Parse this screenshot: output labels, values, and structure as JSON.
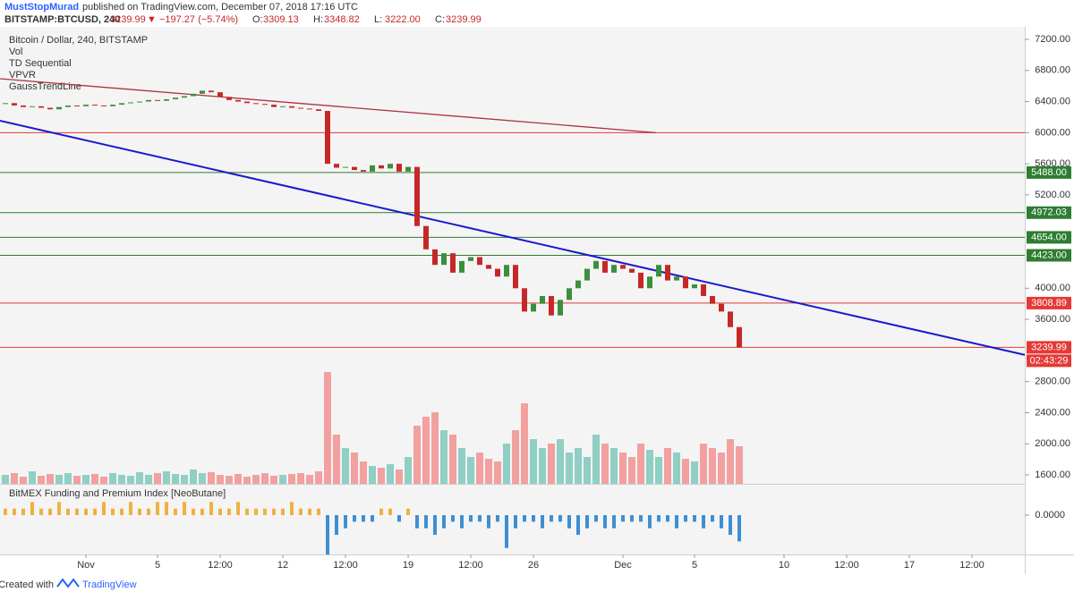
{
  "header": {
    "author": "MustStopMurad",
    "published": "published on TradingView.com, December 07, 2018 17:16 UTC",
    "symbol": "BITSTAMP:BTCUSD, 240",
    "last": "3239.99",
    "change": "▼ −197.27 (−5.74%)",
    "ohlc": [
      {
        "key": "O:",
        "value": "3309.13"
      },
      {
        "key": "H:",
        "value": "3348.82"
      },
      {
        "key": "L:",
        "value": "3222.00"
      },
      {
        "key": "C:",
        "value": "3239.99"
      }
    ]
  },
  "legend": [
    "Bitcoin / Dollar, 240, BITSTAMP",
    "Vol",
    "TD Sequential",
    "VPVR",
    "GaussTrendLine"
  ],
  "footer": {
    "created": "Created with",
    "brand": "TradingView"
  },
  "chart_data": [
    {
      "type": "candle",
      "ylim": [
        1485,
        7361
      ],
      "yticks": [
        1600,
        2000,
        2400,
        2800,
        3600,
        4000,
        5200,
        5600,
        6000,
        6400,
        6800,
        7200
      ],
      "ytick_labels": [
        "1600.00",
        "2000.00",
        "2400.00",
        "2800.00",
        "3600.00",
        "4000.00",
        "5200.00",
        "5600.00",
        "6000.00",
        "6400.00",
        "6800.00",
        "7200.00"
      ],
      "up_color": "#3c8f3c",
      "down_color": "#c62828",
      "xticks": [
        {
          "value": 9,
          "label": "Nov"
        },
        {
          "value": 17,
          "label": "5"
        },
        {
          "value": 24,
          "label": "12:00"
        },
        {
          "value": 31,
          "label": "12"
        },
        {
          "value": 38,
          "label": "12:00"
        },
        {
          "value": 45,
          "label": "19"
        },
        {
          "value": 52,
          "label": "12:00"
        },
        {
          "value": 59,
          "label": "26"
        },
        {
          "value": 69,
          "label": "Dec"
        },
        {
          "value": 77,
          "label": "5"
        },
        {
          "value": 87,
          "label": "10"
        },
        {
          "value": 94,
          "label": "12:00"
        },
        {
          "value": 101,
          "label": "17"
        },
        {
          "value": 108,
          "label": "12:00"
        }
      ],
      "series": [
        {
          "name": "Close",
          "values": [
            6380,
            6350,
            6330,
            6340,
            6320,
            6300,
            6330,
            6350,
            6340,
            6360,
            6350,
            6340,
            6360,
            6380,
            6390,
            6400,
            6420,
            6410,
            6430,
            6450,
            6470,
            6500,
            6540,
            6520,
            6460,
            6420,
            6400,
            6380,
            6370,
            6360,
            6330,
            6340,
            6320,
            6310,
            6300,
            6280,
            5600,
            5550,
            5560,
            5520,
            5500,
            5580,
            5540,
            5600,
            5500,
            5560,
            4800,
            4500,
            4300,
            4450,
            4200,
            4350,
            4400,
            4300,
            4250,
            4150,
            4300,
            4000,
            3700,
            3800,
            3900,
            3650,
            3850,
            4000,
            4100,
            4250,
            4350,
            4200,
            4300,
            4250,
            4200,
            4000,
            4150,
            4300,
            4100,
            4150,
            4000,
            4050,
            3900,
            3800,
            3700,
            3500,
            3240
          ]
        }
      ],
      "levels": [
        {
          "value": 5488,
          "label": "5488.00",
          "color": "#2e7d32"
        },
        {
          "value": 4972.03,
          "label": "4972.03",
          "color": "#2e7d32"
        },
        {
          "value": 4654,
          "label": "4654.00",
          "color": "#2e7d32"
        },
        {
          "value": 4423,
          "label": "4423.00",
          "color": "#2e7d32"
        },
        {
          "value": 3808.89,
          "label": "3808.89",
          "color": "#e53935"
        },
        {
          "value": 3239.99,
          "label": "3239.99",
          "color": "#e53935"
        },
        {
          "value": 6000,
          "color": "#e53935"
        }
      ],
      "countdown": "02:43:29",
      "trendlines": [
        {
          "color": "#1a1acc",
          "from": [
            -0.6,
            6154
          ],
          "to": [
            113.9,
            3143
          ]
        },
        {
          "color": "#b03040",
          "from": [
            -0.6,
            6694
          ],
          "to": [
            72.7,
            6000
          ]
        }
      ]
    },
    {
      "type": "volume",
      "up_color": "#8fcfc4",
      "down_color": "#f2a0a0",
      "values": [
        10,
        12,
        8,
        14,
        9,
        11,
        10,
        12,
        9,
        10,
        11,
        8,
        12,
        10,
        9,
        13,
        10,
        12,
        14,
        11,
        10,
        16,
        12,
        13,
        10,
        9,
        11,
        8,
        10,
        12,
        9,
        10,
        11,
        12,
        10,
        14,
        125,
        55,
        40,
        35,
        25,
        20,
        18,
        22,
        16,
        30,
        65,
        75,
        80,
        60,
        55,
        40,
        30,
        35,
        28,
        25,
        45,
        60,
        90,
        50,
        40,
        45,
        50,
        35,
        40,
        30,
        55,
        45,
        40,
        35,
        30,
        45,
        38,
        30,
        40,
        35,
        28,
        25,
        45,
        40,
        35,
        50,
        42
      ]
    },
    {
      "type": "histogram",
      "title": "BitMEX Funding and Premium Index [NeoButane]",
      "ylim": [
        -0.0006,
        0.00045
      ],
      "yticks": [
        {
          "value": 0,
          "label": "0.0000"
        }
      ],
      "pos_color": "#f0b040",
      "neg_color": "#3d8fd1",
      "values": [
        0.0001,
        0.0001,
        0.0001,
        0.0002,
        0.0001,
        0.0001,
        0.0002,
        0.0001,
        0.0001,
        0.0001,
        0.0001,
        0.0002,
        0.0001,
        0.0001,
        0.0002,
        0.0001,
        0.0001,
        0.0002,
        0.0002,
        0.0001,
        0.0002,
        0.0001,
        0.0001,
        0.0002,
        0.0001,
        0.0001,
        0.0002,
        0.0001,
        0.0001,
        0.0001,
        0.0001,
        0.0001,
        0.0002,
        0.0001,
        0.0001,
        0.0001,
        -0.0006,
        -0.0003,
        -0.0002,
        -0.0001,
        -0.0001,
        -0.0001,
        0.0001,
        0.0001,
        -0.0001,
        0.0001,
        -0.0002,
        -0.0002,
        -0.0003,
        -0.0002,
        -0.0001,
        -0.0002,
        -0.0001,
        -0.0001,
        -0.0002,
        -0.0001,
        -0.0005,
        -0.0002,
        -0.0001,
        -0.0001,
        -0.0002,
        -0.0001,
        -0.0001,
        -0.0002,
        -0.0003,
        -0.0002,
        -0.0001,
        -0.0002,
        -0.0002,
        -0.0001,
        -0.0001,
        -0.0001,
        -0.0002,
        -0.0001,
        -0.0001,
        -0.0002,
        -0.0001,
        -0.0001,
        -0.0002,
        -0.0001,
        -0.0002,
        -0.0003,
        -0.0004
      ]
    }
  ]
}
